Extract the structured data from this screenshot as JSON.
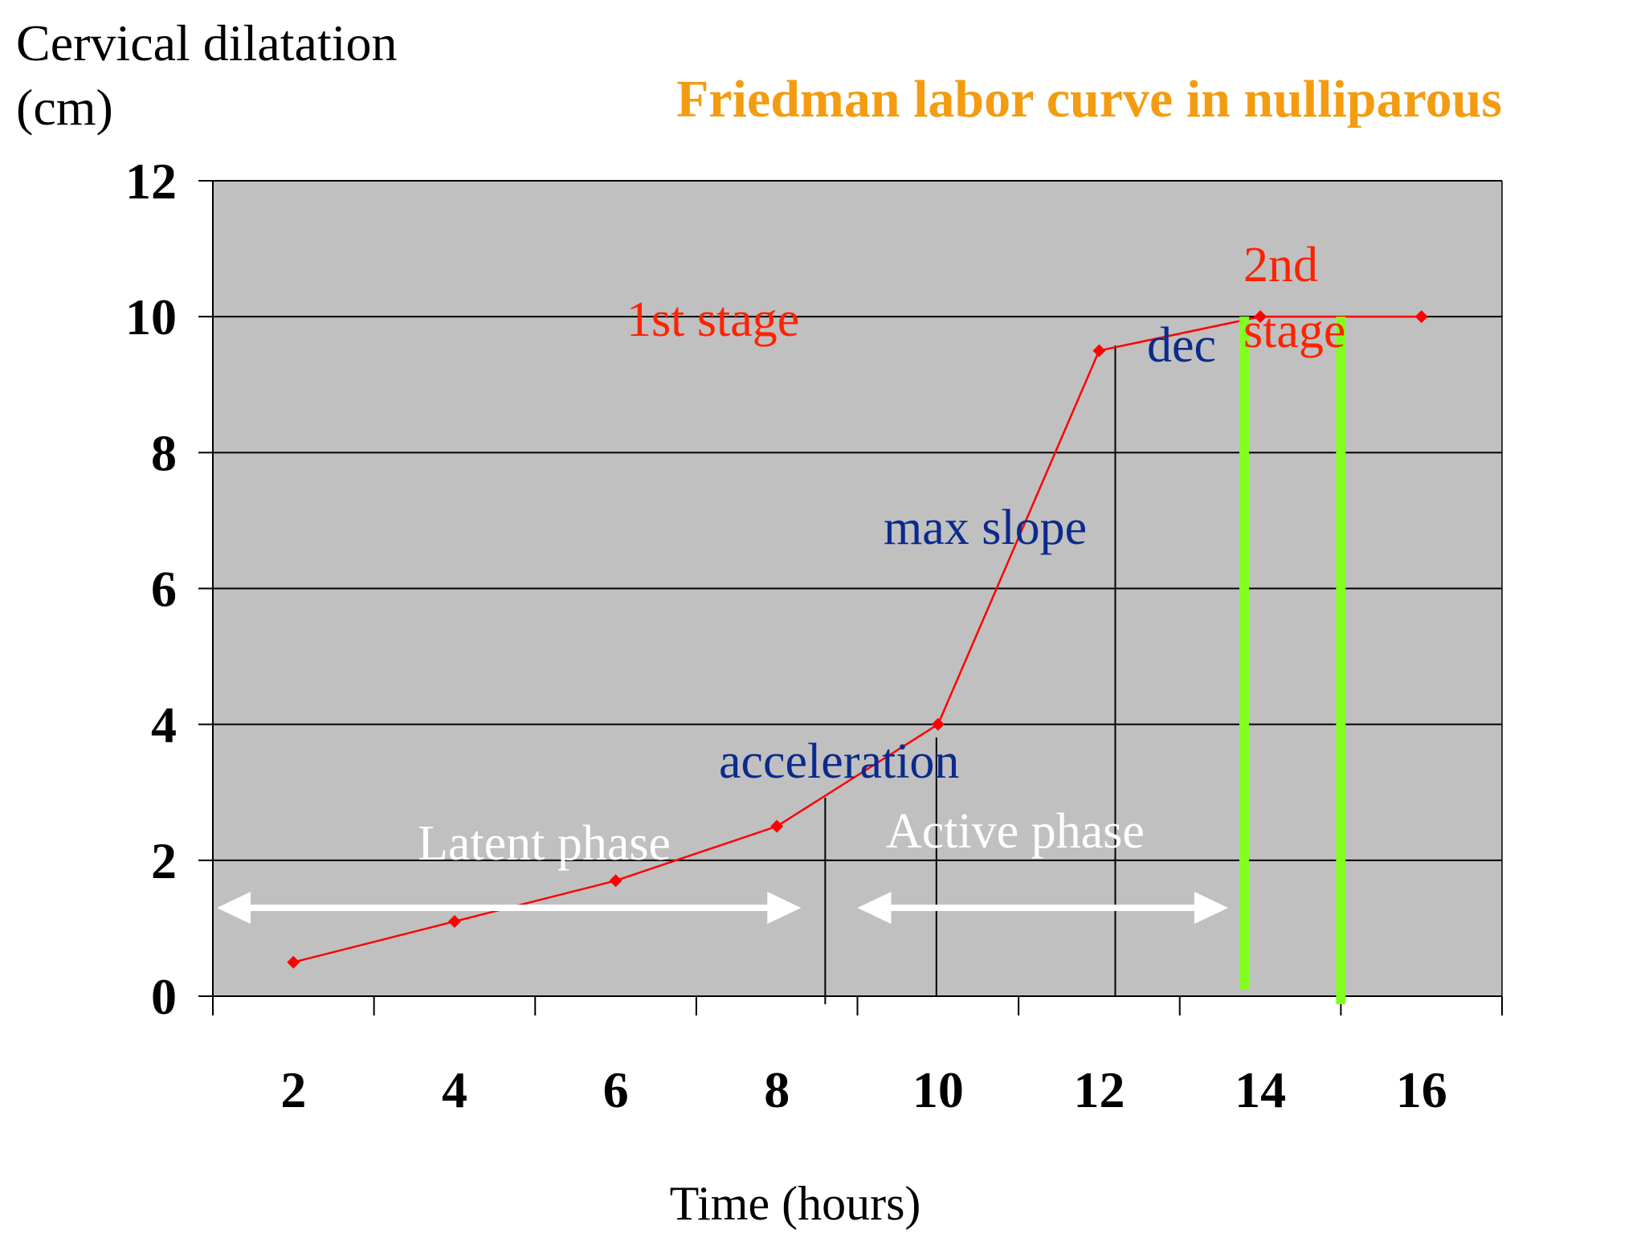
{
  "chart_data": {
    "type": "line",
    "title": "Friedman labor curve in nulliparous",
    "ylabel": "Cervical dilatation (cm)",
    "ylabel_lines": [
      "Cervical dilatation",
      "(cm)"
    ],
    "xlabel": "Time (hours)",
    "xlim": [
      1,
      17
    ],
    "ylim": [
      0,
      12
    ],
    "x_ticks": [
      2,
      4,
      6,
      8,
      10,
      12,
      14,
      16
    ],
    "y_ticks": [
      0,
      2,
      4,
      6,
      8,
      10,
      12
    ],
    "grid": true,
    "series": [
      {
        "name": "Cervical dilatation",
        "color": "#ff0000",
        "x": [
          2,
          4,
          6,
          8,
          10,
          12,
          14,
          16
        ],
        "y": [
          0.5,
          1.1,
          1.7,
          2.5,
          4,
          9.5,
          10,
          10
        ]
      }
    ],
    "colors": {
      "plot_background": "#c0c0c0",
      "title": "#f39c12",
      "stage_labels": "#ff2200",
      "phase_labels": "#0c2a8c",
      "arrows": "#ffffff",
      "stage_markers": "#80ff20"
    },
    "annotations": {
      "first_stage": "1st stage",
      "second_stage_line1": "2nd",
      "second_stage_line2": "stage",
      "deceleration": "dec",
      "max_slope": "max slope",
      "acceleration": "acceleration",
      "latent_phase": "Latent phase",
      "active_phase": "Active phase"
    },
    "phase_dividers_x": [
      8.6,
      9.98,
      12.2
    ],
    "stage_markers_x": [
      13.8,
      15.0
    ],
    "latent_arrow_x": [
      1.05,
      8.3
    ],
    "latent_arrow_y": 1.3,
    "active_arrow_x": [
      9.0,
      13.6
    ],
    "active_arrow_y": 1.3
  }
}
